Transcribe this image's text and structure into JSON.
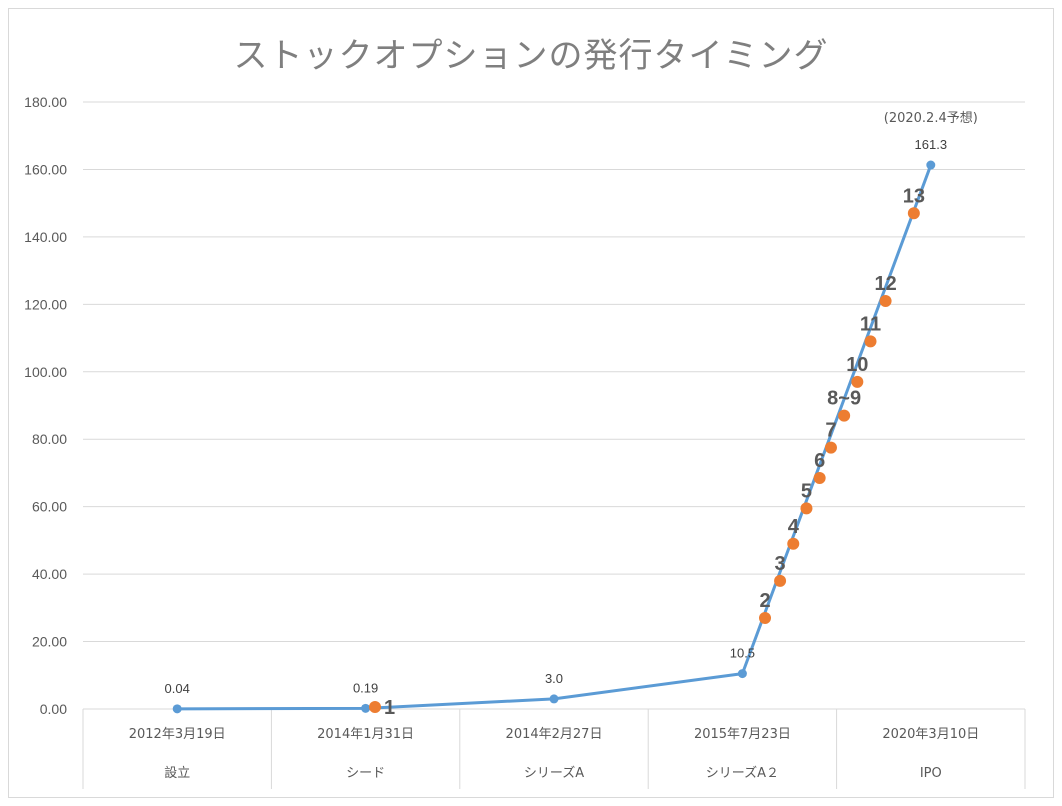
{
  "chart_data": {
    "type": "line",
    "title": "ストックオプションの発行タイミング",
    "ylim": [
      0,
      180
    ],
    "yticks": [
      "0.00",
      "20.00",
      "40.00",
      "60.00",
      "80.00",
      "100.00",
      "120.00",
      "140.00",
      "160.00",
      "180.00"
    ],
    "grid": true,
    "categories": [
      {
        "date": "2012年3月19日",
        "stage": "設立"
      },
      {
        "date": "2014年1月31日",
        "stage": "シード"
      },
      {
        "date": "2014年2月27日",
        "stage": "シリーズA"
      },
      {
        "date": "2015年7月23日",
        "stage": "シリーズA２"
      },
      {
        "date": "2020年3月10日",
        "stage": "IPO"
      }
    ],
    "series": [
      {
        "color": "#5b9bd5",
        "points": [
          {
            "x": 0.0,
            "y": 0.04,
            "label": "0.04"
          },
          {
            "x": 1.0,
            "y": 0.19,
            "label": "0.19"
          },
          {
            "x": 2.0,
            "y": 3.0,
            "label": "3.0"
          },
          {
            "x": 3.0,
            "y": 10.5,
            "label": "10.5"
          },
          {
            "x": 4.0,
            "y": 161.3,
            "label": "161.3"
          }
        ]
      },
      {
        "color": "#ed7d31",
        "points": [
          {
            "x": 1.05,
            "y": 0.6,
            "label": "1"
          },
          {
            "x": 3.12,
            "y": 27,
            "label": "2"
          },
          {
            "x": 3.2,
            "y": 38,
            "label": "3"
          },
          {
            "x": 3.27,
            "y": 49,
            "label": "4"
          },
          {
            "x": 3.34,
            "y": 59.5,
            "label": "5"
          },
          {
            "x": 3.41,
            "y": 68.5,
            "label": "6"
          },
          {
            "x": 3.47,
            "y": 77.5,
            "label": "7"
          },
          {
            "x": 3.54,
            "y": 87,
            "label": "8~9"
          },
          {
            "x": 3.61,
            "y": 97,
            "label": "10"
          },
          {
            "x": 3.68,
            "y": 109,
            "label": "11"
          },
          {
            "x": 3.76,
            "y": 121,
            "label": "12"
          },
          {
            "x": 3.91,
            "y": 147,
            "label": "13"
          }
        ]
      }
    ],
    "annotation": "(2020.2.4予想)"
  }
}
